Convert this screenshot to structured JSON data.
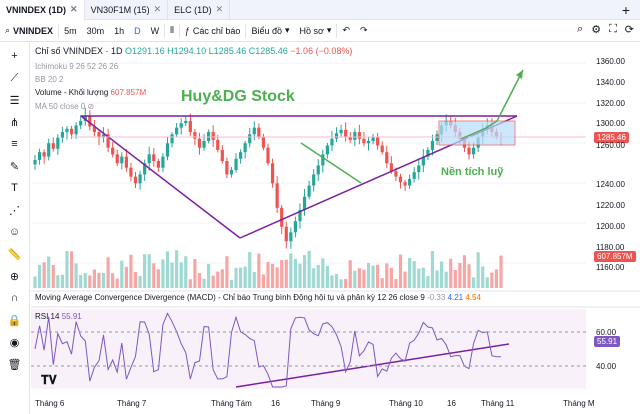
{
  "tabs": [
    {
      "label": "VNINDEX (1D)",
      "active": true
    },
    {
      "label": "VN30F1M (15)",
      "active": false
    },
    {
      "label": "ELC (1D)",
      "active": false
    }
  ],
  "toolbar": {
    "symbol": "VNINDEX",
    "intervals": [
      "5m",
      "30m",
      "1h",
      "D",
      "W"
    ],
    "selected_interval": "D",
    "indicators": "Các chỉ báo",
    "chart_type": "Biểu đồ",
    "profile": "Hồ sơ"
  },
  "legend": {
    "title": "Chỉ số VNINDEX · 1D",
    "open": "O1291.16",
    "high": "H1294.10",
    "low": "L1285.46",
    "close": "C1285.46",
    "change": "−1.06 (−0.08%)",
    "ichimoku": "Ichimoku 9 26 52 26 26",
    "bb": "BB 20 2",
    "volume_label": "Volume - Khối lượng",
    "volume_value": "607.857M",
    "ma": "MA 50 close 0",
    "macd": "Moving Average Convergence Divergence (MACD) - Chỉ báo Trung bình Động hội tụ và phân kỳ 12 26 close 9",
    "macd_vals": [
      "-0.33",
      "4.21",
      "4.54"
    ],
    "rsi_label": "RSI 14",
    "rsi_value": "55.91"
  },
  "annotations": {
    "title": "Huy&DG Stock",
    "note": "Nền tích luỹ"
  },
  "price_axis": [
    "1360.00",
    "1340.00",
    "1320.00",
    "1300.00",
    "1280.00",
    "1260.00",
    "1240.00",
    "1220.00",
    "1200.00",
    "1180.00",
    "1160.00"
  ],
  "rsi_axis": [
    "60.00",
    "40.00"
  ],
  "price_tag": "1285.46",
  "volume_tag": "607.857M",
  "rsi_tag": "55.91",
  "time_axis": [
    "Tháng 6",
    "Tháng 7",
    "Tháng Tám",
    "16",
    "Tháng 9",
    "Tháng 10",
    "16",
    "Tháng 11",
    "Tháng M"
  ],
  "colors": {
    "up": "#26a69a",
    "down": "#ef5350",
    "accent": "#2962ff",
    "annot": "#4caf50",
    "trend": "#7b1fa2"
  },
  "chart_data": {
    "type": "candlestick",
    "title": "Chỉ số VNINDEX · 1D",
    "ylim": [
      1150,
      1370
    ],
    "close": [
      1265,
      1272,
      1268,
      1280,
      1275,
      1285,
      1290,
      1293,
      1288,
      1296,
      1300,
      1305,
      1295,
      1290,
      1285,
      1288,
      1276,
      1270,
      1262,
      1268,
      1258,
      1250,
      1244,
      1252,
      1262,
      1270,
      1264,
      1258,
      1268,
      1280,
      1288,
      1294,
      1298,
      1300,
      1290,
      1284,
      1276,
      1282,
      1290,
      1283,
      1274,
      1264,
      1252,
      1256,
      1266,
      1272,
      1280,
      1288,
      1294,
      1286,
      1276,
      1262,
      1244,
      1222,
      1205,
      1192,
      1200,
      1210,
      1220,
      1232,
      1242,
      1252,
      1260,
      1270,
      1278,
      1284,
      1289,
      1292,
      1286,
      1283,
      1290,
      1284,
      1280,
      1282,
      1286,
      1278,
      1272,
      1262,
      1255,
      1250,
      1245,
      1242,
      1248,
      1254,
      1260,
      1268,
      1274,
      1282,
      1288,
      1296,
      1300,
      1296,
      1290,
      1284,
      1276,
      1270,
      1276,
      1286,
      1292,
      1296,
      1290,
      1286,
      1285
    ]
  }
}
